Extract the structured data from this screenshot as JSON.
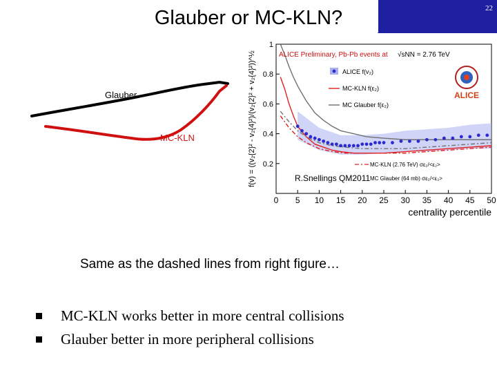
{
  "slide": {
    "title": "Glauber or MC-KLN?",
    "number": "22"
  },
  "sketch": {
    "glauber_label": "Glauber",
    "mcklyn_label": "MC-KLN"
  },
  "figure": {
    "header_text": "ALICE Preliminary, Pb-Pb events at",
    "energy_text": "√s",
    "energy_sub": "NN",
    "energy_value": " = 2.76 TeV",
    "logo_text": "ALICE",
    "legend": {
      "alice": "ALICE f(v₂)",
      "mcklyn": "MC-KLN f(ε₂)",
      "mcglauber": "MC Glauber f(ε₂)",
      "mcklyn_ratio": "MC-KLN (2.76 TeV)  σε₂/<ε₂>",
      "mcglauber_ratio": "MC Glauber (64 mb)  σε₂/<ε₂>"
    },
    "credit": "R.Snellings QM2011"
  },
  "chart_data": {
    "type": "line",
    "xlabel": "centrality percentile",
    "ylabel": "f(v) = ((v₂{2}² - v₂{4}²)/(v₂{2}² + v₂{4}²))^½",
    "xlim": [
      0,
      50
    ],
    "ylim": [
      0,
      1
    ],
    "xticks": [
      "0",
      "5",
      "10",
      "15",
      "20",
      "25",
      "30",
      "35",
      "40",
      "45",
      "50"
    ],
    "yticks": [
      "0.2",
      "0.4",
      "0.6",
      "0.8",
      "1"
    ],
    "series": [
      {
        "name": "ALICE f(v₂)",
        "style": "points",
        "color": "#2a2ad0",
        "x": [
          5,
          6,
          7,
          8,
          9,
          10,
          11,
          12,
          13,
          14,
          15,
          16,
          17,
          18,
          19,
          20,
          21,
          22,
          23,
          24,
          25,
          27,
          29,
          31,
          33,
          35,
          37,
          39,
          41,
          43,
          45,
          47,
          49
        ],
        "y": [
          0.45,
          0.42,
          0.4,
          0.38,
          0.37,
          0.36,
          0.35,
          0.34,
          0.33,
          0.33,
          0.32,
          0.32,
          0.32,
          0.32,
          0.32,
          0.33,
          0.33,
          0.33,
          0.34,
          0.34,
          0.34,
          0.34,
          0.35,
          0.35,
          0.35,
          0.36,
          0.36,
          0.37,
          0.37,
          0.38,
          0.38,
          0.39,
          0.39
        ]
      },
      {
        "name": "MC-KLN f(ε₂)",
        "style": "solid",
        "color": "#e02020",
        "x": [
          1,
          2,
          3,
          4,
          5,
          7,
          9,
          11,
          13,
          15,
          18,
          21,
          25,
          30,
          35,
          40,
          45,
          50
        ],
        "y": [
          0.78,
          0.7,
          0.6,
          0.52,
          0.45,
          0.38,
          0.33,
          0.31,
          0.29,
          0.28,
          0.27,
          0.27,
          0.27,
          0.28,
          0.29,
          0.3,
          0.31,
          0.32
        ]
      },
      {
        "name": "MC Glauber f(ε₂)",
        "style": "solid",
        "color": "#707070",
        "x": [
          1,
          2,
          3,
          4,
          5,
          7,
          9,
          11,
          13,
          15,
          18,
          21,
          25,
          30,
          35,
          40,
          45,
          50
        ],
        "y": [
          1.0,
          0.93,
          0.85,
          0.78,
          0.72,
          0.62,
          0.54,
          0.49,
          0.45,
          0.42,
          0.4,
          0.38,
          0.37,
          0.36,
          0.36,
          0.36,
          0.36,
          0.36
        ]
      },
      {
        "name": "MC-KLN (2.76 TeV) σε₂/<ε₂>",
        "style": "dashdot",
        "color": "#e02020",
        "x": [
          1,
          3,
          5,
          7,
          10,
          13,
          16,
          20,
          25,
          30,
          35,
          40,
          45,
          50
        ],
        "y": [
          0.52,
          0.44,
          0.38,
          0.34,
          0.3,
          0.28,
          0.27,
          0.27,
          0.27,
          0.27,
          0.28,
          0.29,
          0.3,
          0.31
        ]
      },
      {
        "name": "MC Glauber (64 mb) σε₂/<ε₂>",
        "style": "dashdot",
        "color": "#707070",
        "x": [
          1,
          3,
          5,
          7,
          10,
          13,
          16,
          20,
          25,
          30,
          35,
          40,
          45,
          50
        ],
        "y": [
          0.55,
          0.48,
          0.42,
          0.38,
          0.34,
          0.32,
          0.31,
          0.3,
          0.3,
          0.3,
          0.31,
          0.32,
          0.33,
          0.34
        ]
      }
    ],
    "band": {
      "color": "#aab0ee",
      "x": [
        5,
        10,
        15,
        20,
        25,
        30,
        35,
        40,
        45,
        50
      ],
      "low": [
        0.36,
        0.29,
        0.26,
        0.26,
        0.27,
        0.28,
        0.28,
        0.29,
        0.3,
        0.3
      ],
      "high": [
        0.55,
        0.44,
        0.39,
        0.39,
        0.4,
        0.42,
        0.43,
        0.44,
        0.46,
        0.47
      ]
    }
  },
  "note": "Same as the dashed lines from right figure…",
  "bullets": [
    "MC-KLN works better in more central collisions",
    "Glauber better in more peripheral collisions"
  ]
}
